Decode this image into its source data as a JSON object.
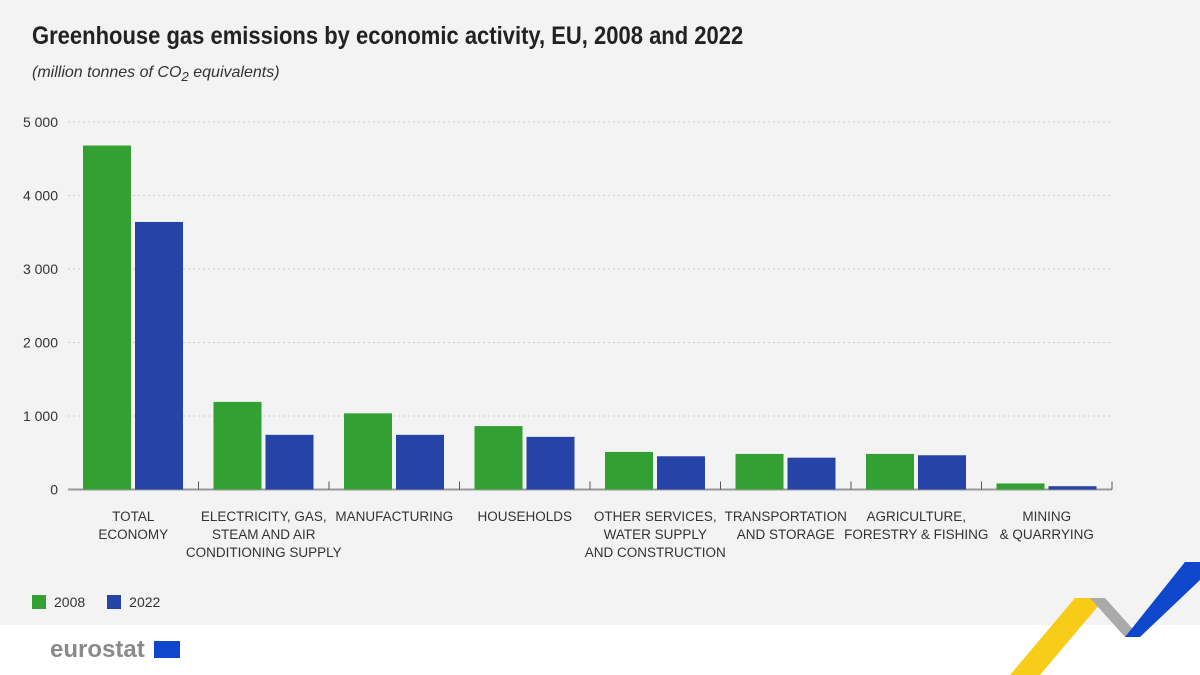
{
  "title": "Greenhouse gas emissions by economic activity, EU, 2008 and 2022",
  "subtitle_pre": "(million tonnes of CO",
  "subtitle_sub": "2",
  "subtitle_post": " equivalents)",
  "logo": "eurostat",
  "chart_data": {
    "type": "bar",
    "title": "Greenhouse gas emissions by economic activity, EU, 2008 and 2022",
    "ylabel": "million tonnes of CO2 equivalents",
    "ylim": [
      0,
      5000
    ],
    "yticks": [
      "0",
      "1 000",
      "2 000",
      "3 000",
      "4 000",
      "5 000"
    ],
    "grid": true,
    "legend": "bottom-left",
    "categories": [
      [
        "TOTAL",
        "ECONOMY"
      ],
      [
        "ELECTRICITY, GAS,",
        "STEAM AND AIR",
        "CONDITIONING SUPPLY"
      ],
      [
        "MANUFACTURING"
      ],
      [
        "HOUSEHOLDS"
      ],
      [
        "OTHER SERVICES,",
        "WATER SUPPLY",
        "AND CONSTRUCTION"
      ],
      [
        "TRANSPORTATION",
        "AND STORAGE"
      ],
      [
        "AGRICULTURE,",
        "FORESTRY & FISHING"
      ],
      [
        "MINING",
        "& QUARRYING"
      ]
    ],
    "series": [
      {
        "name": "2008",
        "color": "#33a033",
        "values": [
          4680,
          1192,
          1036,
          863,
          511,
          484,
          484,
          82
        ]
      },
      {
        "name": "2022",
        "color": "#2644a7",
        "values": [
          3640,
          744,
          744,
          716,
          452,
          433,
          466,
          45
        ]
      }
    ]
  }
}
